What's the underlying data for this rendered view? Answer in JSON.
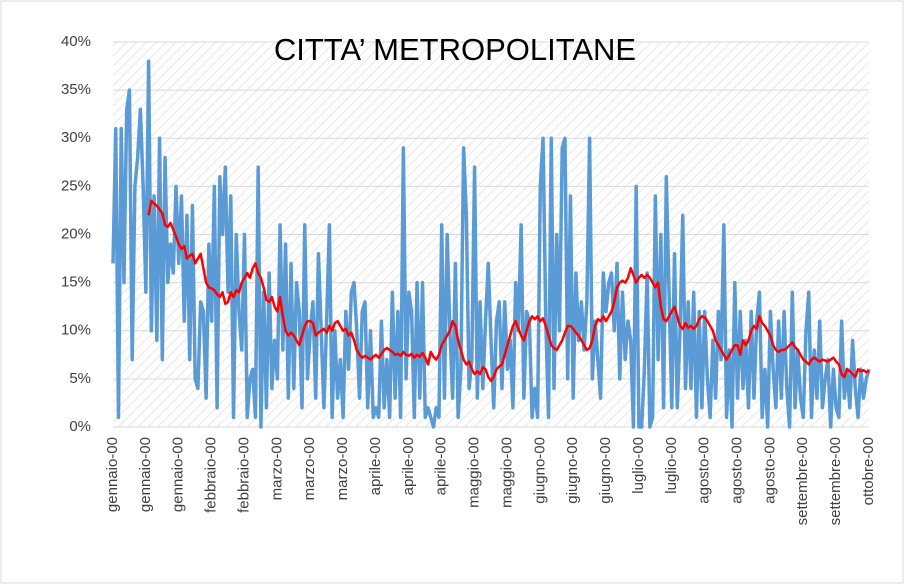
{
  "chart_data": {
    "type": "line",
    "title": "CITTA’ METROPOLITANE",
    "categories": [
      "gennaio-00",
      null,
      null,
      null,
      null,
      null,
      null,
      null,
      null,
      null,
      null,
      null,
      "gennaio-00",
      null,
      null,
      null,
      null,
      null,
      null,
      null,
      null,
      null,
      null,
      null,
      "gennaio-00",
      null,
      null,
      null,
      null,
      null,
      null,
      null,
      null,
      null,
      null,
      null,
      "febbraio-00",
      null,
      null,
      null,
      null,
      null,
      null,
      null,
      null,
      null,
      null,
      null,
      "febbraio-00",
      null,
      null,
      null,
      null,
      null,
      null,
      null,
      null,
      null,
      null,
      null,
      "marzo-00",
      null,
      null,
      null,
      null,
      null,
      null,
      null,
      null,
      null,
      null,
      null,
      "marzo-00",
      null,
      null,
      null,
      null,
      null,
      null,
      null,
      null,
      null,
      null,
      null,
      "marzo-00",
      null,
      null,
      null,
      null,
      null,
      null,
      null,
      null,
      null,
      null,
      null,
      "aprile-00",
      null,
      null,
      null,
      null,
      null,
      null,
      null,
      null,
      null,
      null,
      null,
      "aprile-00",
      null,
      null,
      null,
      null,
      null,
      null,
      null,
      null,
      null,
      null,
      null,
      "aprile-00",
      null,
      null,
      null,
      null,
      null,
      null,
      null,
      null,
      null,
      null,
      null,
      "maggio-00",
      null,
      null,
      null,
      null,
      null,
      null,
      null,
      null,
      null,
      null,
      null,
      "maggio-00",
      null,
      null,
      null,
      null,
      null,
      null,
      null,
      null,
      null,
      null,
      null,
      "giugno-00",
      null,
      null,
      null,
      null,
      null,
      null,
      null,
      null,
      null,
      null,
      null,
      "giugno-00",
      null,
      null,
      null,
      null,
      null,
      null,
      null,
      null,
      null,
      null,
      null,
      "giugno-00",
      null,
      null,
      null,
      null,
      null,
      null,
      null,
      null,
      null,
      null,
      null,
      "luglio-00",
      null,
      null,
      null,
      null,
      null,
      null,
      null,
      null,
      null,
      null,
      null,
      "luglio-00",
      null,
      null,
      null,
      null,
      null,
      null,
      null,
      null,
      null,
      null,
      null,
      "agosto-00",
      null,
      null,
      null,
      null,
      null,
      null,
      null,
      null,
      null,
      null,
      null,
      "agosto-00",
      null,
      null,
      null,
      null,
      null,
      null,
      null,
      null,
      null,
      null,
      null,
      "agosto-00",
      null,
      null,
      null,
      null,
      null,
      null,
      null,
      null,
      null,
      null,
      null,
      "settembre-00",
      null,
      null,
      null,
      null,
      null,
      null,
      null,
      null,
      null,
      null,
      null,
      "settembre-00",
      null,
      null,
      null,
      null,
      null,
      null,
      null,
      null,
      null,
      null,
      null,
      "ottobre-00"
    ],
    "series": [
      {
        "color": "#5b9bd5",
        "width": 3.5,
        "values": [
          17,
          31,
          1,
          31,
          15,
          33,
          35,
          7,
          25,
          28,
          33,
          25,
          14,
          38,
          10,
          24,
          9,
          30,
          7,
          28,
          15,
          19,
          16,
          25,
          17,
          24,
          11,
          22,
          7,
          23,
          5,
          4,
          13,
          12,
          3,
          19,
          11,
          25,
          2,
          26,
          20,
          27,
          14,
          24,
          1,
          20,
          12,
          8,
          20,
          1,
          5,
          6,
          1,
          27,
          0,
          14,
          2,
          16,
          4,
          9,
          5,
          21,
          8,
          19,
          3,
          17,
          4,
          15,
          12,
          2,
          21,
          5,
          10,
          13,
          3,
          18,
          10,
          2,
          11,
          21,
          1,
          10,
          3,
          7,
          1,
          12,
          6,
          14,
          15,
          10,
          3,
          12,
          13,
          2,
          10,
          1,
          2,
          1,
          11,
          2,
          7,
          1,
          14,
          3,
          12,
          1,
          29,
          5,
          14,
          12,
          1,
          15,
          3,
          15,
          1,
          2,
          1,
          0,
          2,
          1,
          21,
          3,
          20,
          10,
          3,
          17,
          1,
          6,
          29,
          22,
          4,
          7,
          27,
          3,
          13,
          4,
          11,
          17,
          9,
          2,
          11,
          13,
          4,
          13,
          6,
          9,
          2,
          15,
          10,
          21,
          3,
          12,
          11,
          1,
          4,
          1,
          25,
          30,
          11,
          1,
          30,
          4,
          20,
          10,
          29,
          30,
          5,
          24,
          3,
          16,
          9,
          13,
          8,
          13,
          30,
          5,
          11,
          7,
          3,
          16,
          12,
          15,
          16,
          10,
          17,
          5,
          14,
          7,
          11,
          9,
          0,
          25,
          0,
          0,
          6,
          16,
          0,
          1,
          24,
          7,
          20,
          2,
          26,
          14,
          2,
          18,
          2,
          10,
          22,
          4,
          13,
          4,
          14,
          1,
          12,
          2,
          12,
          5,
          1,
          9,
          3,
          12,
          7,
          21,
          1,
          8,
          0,
          15,
          3,
          12,
          4,
          9,
          2,
          12,
          3,
          11,
          14,
          1,
          6,
          0,
          12,
          6,
          2,
          11,
          3,
          12,
          4,
          0,
          14,
          2,
          8,
          3,
          1,
          10,
          14,
          1,
          8,
          3,
          11,
          2,
          5,
          7,
          0,
          6,
          2,
          1,
          11,
          3,
          6,
          2,
          9,
          4,
          1,
          6,
          3,
          5,
          6
        ]
      },
      {
        "color": "#ff0000",
        "width": 2.5,
        "values": [
          null,
          null,
          null,
          null,
          null,
          null,
          null,
          null,
          null,
          null,
          null,
          null,
          null,
          22,
          23.5,
          23.2,
          23,
          22.6,
          22.2,
          21,
          20.8,
          21.2,
          20.5,
          19.8,
          19,
          18.5,
          18.8,
          17.5,
          17.8,
          18,
          17,
          17.5,
          18,
          16.5,
          15,
          14.5,
          14.4,
          14.2,
          13.8,
          13.5,
          14,
          12.8,
          13,
          14,
          13.5,
          14.2,
          14,
          15,
          15.5,
          16,
          15.5,
          16.5,
          17,
          16,
          15.5,
          14.5,
          13.2,
          13,
          13.5,
          12.5,
          12,
          13.5,
          11.5,
          10,
          9.5,
          9.8,
          9.5,
          9,
          8.5,
          9.5,
          10.5,
          11,
          11,
          10.8,
          9.5,
          9.8,
          10,
          10.2,
          9.8,
          10.5,
          10,
          10.8,
          11,
          10.5,
          10,
          10.2,
          9.5,
          9.8,
          9,
          8,
          7.5,
          7.2,
          7.4,
          7.2,
          7,
          7.3,
          7.5,
          7.2,
          7.6,
          8,
          8.2,
          8,
          7.8,
          7.5,
          7.6,
          7.4,
          7.8,
          7.5,
          7.4,
          7.6,
          7.2,
          7.5,
          7.3,
          7.7,
          7.2,
          6.5,
          7.8,
          7.3,
          7,
          7.5,
          8.5,
          9,
          9.5,
          10,
          11,
          10.5,
          9,
          8,
          7,
          6.5,
          6.8,
          6,
          5.5,
          5.8,
          5.5,
          6.2,
          6,
          5.2,
          4.8,
          5.2,
          6,
          6.3,
          6.5,
          7.5,
          8.5,
          9.5,
          10.5,
          11,
          10.2,
          9.5,
          9,
          10,
          11,
          11.5,
          11.2,
          11.5,
          11,
          11.3,
          10.5,
          9.5,
          8.5,
          8.2,
          8,
          8.5,
          9,
          9.8,
          10.5,
          10.5,
          10.2,
          9.8,
          9.5,
          9,
          8.5,
          8,
          8.2,
          9,
          10.5,
          11.2,
          11,
          11.5,
          11,
          11.5,
          12,
          13,
          14.5,
          15,
          15.2,
          15,
          15.5,
          16.5,
          15.8,
          15,
          15.5,
          15.8,
          15.5,
          15.8,
          15.5,
          15,
          14.5,
          15,
          12.5,
          11.2,
          11,
          11.5,
          12,
          12.5,
          11.5,
          10.5,
          10.2,
          10.8,
          10.3,
          10.5,
          10.2,
          10.5,
          11.2,
          11.5,
          11.4,
          11,
          10.5,
          10,
          9,
          8.5,
          8,
          7.5,
          7,
          7.5,
          8,
          8.5,
          8.5,
          7.5,
          9,
          8.5,
          9,
          10,
          10.5,
          10.2,
          11.5,
          10.8,
          10.5,
          10,
          9.5,
          8.5,
          8,
          7.8,
          8,
          8,
          8.2,
          8.5,
          8.8,
          8.3,
          8,
          7.5,
          7,
          6.8,
          6.5,
          7,
          7.2,
          7,
          6.8,
          7,
          6.9,
          6.8,
          7,
          7.2,
          6.8,
          6.5,
          5.5,
          5.2,
          6,
          5.8,
          5.5,
          5.2,
          6,
          5.8,
          5.9,
          5.7,
          5.8
        ]
      }
    ],
    "ylim": [
      0,
      40
    ],
    "yticks": [
      {
        "value": 0,
        "label": "0%"
      },
      {
        "value": 5,
        "label": "5%"
      },
      {
        "value": 10,
        "label": "10%"
      },
      {
        "value": 15,
        "label": "15%"
      },
      {
        "value": 20,
        "label": "20%"
      },
      {
        "value": 25,
        "label": "25%"
      },
      {
        "value": 30,
        "label": "30%"
      },
      {
        "value": 35,
        "label": "35%"
      },
      {
        "value": 40,
        "label": "40%"
      }
    ],
    "grid": true
  }
}
